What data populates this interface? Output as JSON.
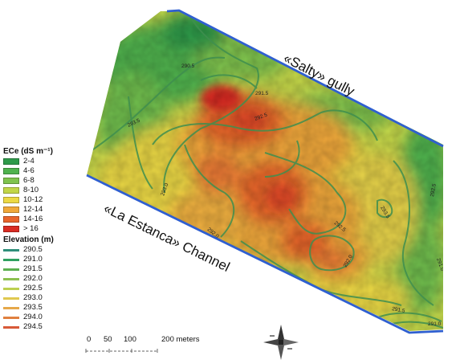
{
  "labels": {
    "salty_gully": "«Salty» gully",
    "channel": "«La Estanca» Channel"
  },
  "legend": {
    "ece_title": "ECe (dS m⁻¹)",
    "ece_classes": [
      {
        "label": "2-4",
        "color": "#2e9a4a"
      },
      {
        "label": "4-6",
        "color": "#4fb24e"
      },
      {
        "label": "6-8",
        "color": "#7fc34e"
      },
      {
        "label": "8-10",
        "color": "#c2d648"
      },
      {
        "label": "10-12",
        "color": "#ecd944"
      },
      {
        "label": "12-14",
        "color": "#f0a83a"
      },
      {
        "label": "14-16",
        "color": "#e8652c"
      },
      {
        "label": "> 16",
        "color": "#d92b22"
      }
    ],
    "elevation_title": "Elevation (m)",
    "elevation_classes": [
      {
        "label": "290.5",
        "color": "#2f8f7a"
      },
      {
        "label": "291.0",
        "color": "#2fa060"
      },
      {
        "label": "291.5",
        "color": "#5cb050"
      },
      {
        "label": "292.0",
        "color": "#8cc050"
      },
      {
        "label": "292.5",
        "color": "#bcd050"
      },
      {
        "label": "293.0",
        "color": "#e0c850"
      },
      {
        "label": "293.5",
        "color": "#e6a84a"
      },
      {
        "label": "294.0",
        "color": "#e08040"
      },
      {
        "label": "294.5",
        "color": "#d85a38"
      }
    ]
  },
  "scale_bar": {
    "ticks": [
      "0",
      "50",
      "100",
      "200 meters"
    ]
  },
  "contour_labels": [
    "290.5",
    "291.5",
    "292.5",
    "293.5",
    "293.0",
    "292.0",
    "291.0",
    "292.5",
    "293.5",
    "292.0",
    "292.5",
    "291.0",
    "290.5",
    "291.5",
    "291.0"
  ],
  "colors": {
    "boundary": "#2f5fd0",
    "contour": "#3f8f4f"
  }
}
